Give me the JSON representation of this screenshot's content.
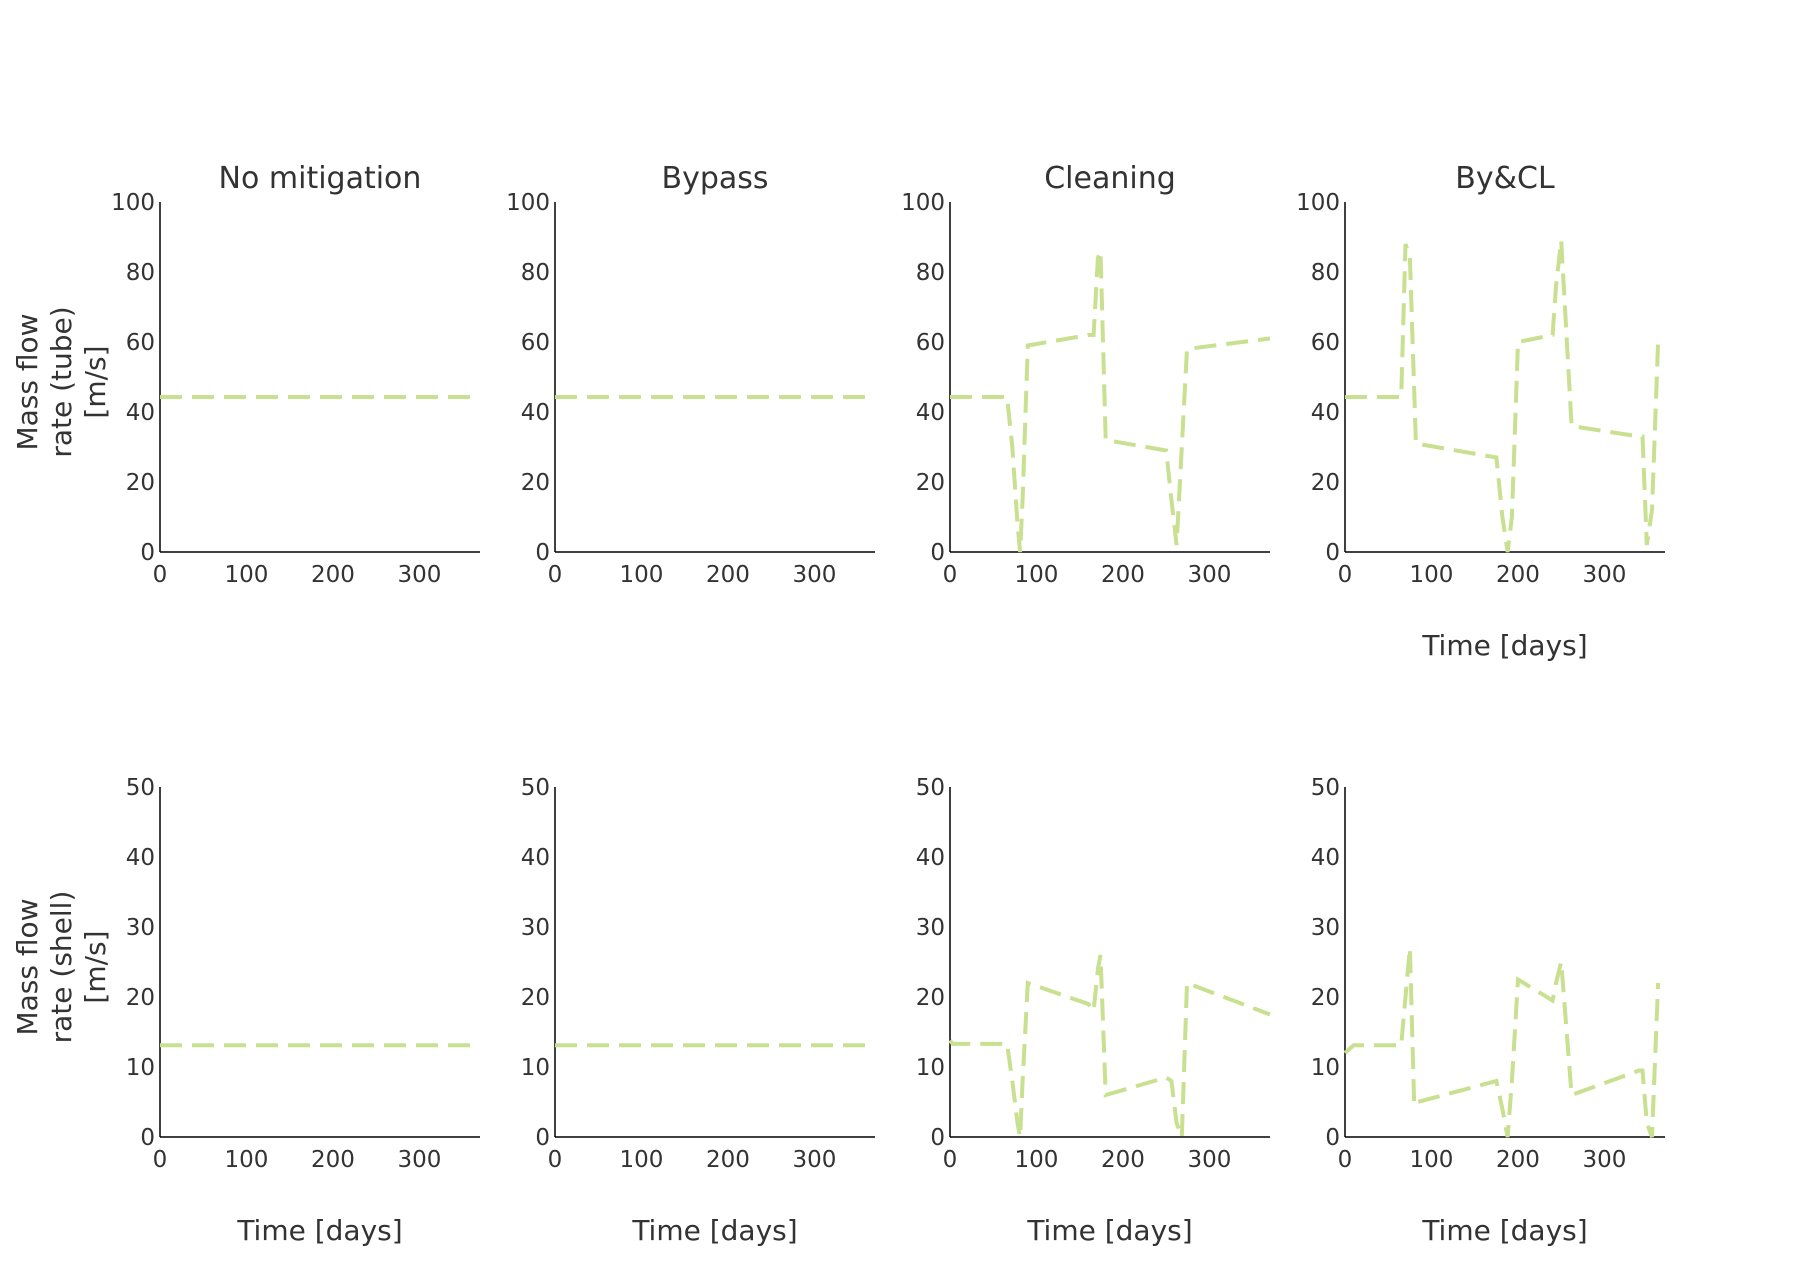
{
  "chart_data": {
    "type": "line",
    "colors": {
      "series": "#c8e08f",
      "text": "#333333",
      "axis": "#000000"
    },
    "columns": [
      "No mitigation",
      "Bypass",
      "Cleaning",
      "By&CL"
    ],
    "x_label": "Time [days]",
    "x_ticks": [
      0,
      100,
      200,
      300
    ],
    "xlim": [
      0,
      370
    ],
    "rows": [
      {
        "ylabel_lines": [
          "Mass flow",
          "rate (tube)",
          "[m/s]"
        ],
        "ylim": [
          0,
          100
        ],
        "y_ticks": [
          0,
          20,
          40,
          60,
          80,
          100
        ]
      },
      {
        "ylabel_lines": [
          "Mass flow",
          "rate (shell)",
          "[m/s]"
        ],
        "ylim": [
          0,
          50
        ],
        "y_ticks": [
          0,
          10,
          20,
          30,
          40,
          50
        ]
      }
    ],
    "panels": [
      {
        "row": 0,
        "col": 0,
        "title": "No mitigation",
        "show_xlabel": false,
        "x": [
          0,
          365
        ],
        "y": [
          44.3,
          44.3
        ]
      },
      {
        "row": 0,
        "col": 1,
        "title": "Bypass",
        "show_xlabel": false,
        "x": [
          0,
          365
        ],
        "y": [
          44.3,
          44.3
        ]
      },
      {
        "row": 0,
        "col": 2,
        "title": "Cleaning",
        "show_xlabel": false,
        "x": [
          0,
          66,
          72,
          78,
          81,
          84,
          90,
          160,
          166,
          171,
          174,
          180,
          250,
          256,
          262,
          268,
          274,
          370
        ],
        "y": [
          44.3,
          44.3,
          30,
          8,
          0,
          15,
          59,
          62,
          62,
          84,
          86,
          32,
          29,
          15,
          2,
          30,
          58,
          61
        ]
      },
      {
        "row": 0,
        "col": 3,
        "title": "By&CL",
        "show_xlabel": true,
        "x": [
          0,
          60,
          65,
          70,
          75,
          82,
          175,
          182,
          188,
          193,
          200,
          240,
          244,
          250,
          262,
          340,
          344,
          349,
          355,
          362
        ],
        "y": [
          44.3,
          44.3,
          44.3,
          88,
          84,
          31,
          27,
          10,
          0,
          10,
          60,
          62,
          76,
          89,
          36,
          33,
          33,
          2,
          12,
          60
        ]
      },
      {
        "row": 1,
        "col": 0,
        "show_xlabel": true,
        "x": [
          0,
          365
        ],
        "y": [
          13.1,
          13.1
        ]
      },
      {
        "row": 1,
        "col": 1,
        "show_xlabel": true,
        "x": [
          0,
          365
        ],
        "y": [
          13.1,
          13.1
        ]
      },
      {
        "row": 1,
        "col": 2,
        "show_xlabel": true,
        "x": [
          0,
          3,
          66,
          72,
          78,
          81,
          84,
          90,
          160,
          166,
          171,
          174,
          180,
          250,
          256,
          262,
          268,
          274,
          370
        ],
        "y": [
          13.8,
          13.3,
          13.3,
          8,
          2,
          0,
          8,
          22,
          19,
          18,
          24,
          26,
          6,
          8.5,
          8,
          2,
          0,
          22,
          17.5
        ]
      },
      {
        "row": 1,
        "col": 3,
        "show_xlabel": true,
        "x": [
          0,
          10,
          60,
          65,
          70,
          75,
          80,
          84,
          175,
          182,
          188,
          193,
          200,
          240,
          244,
          250,
          262,
          340,
          344,
          349,
          355,
          362
        ],
        "y": [
          12,
          13.1,
          13.1,
          13.1,
          20,
          27,
          4.5,
          5,
          8,
          4,
          0,
          8,
          22.5,
          19.5,
          22,
          25,
          6,
          9.5,
          9.5,
          2,
          0,
          22
        ]
      }
    ]
  }
}
